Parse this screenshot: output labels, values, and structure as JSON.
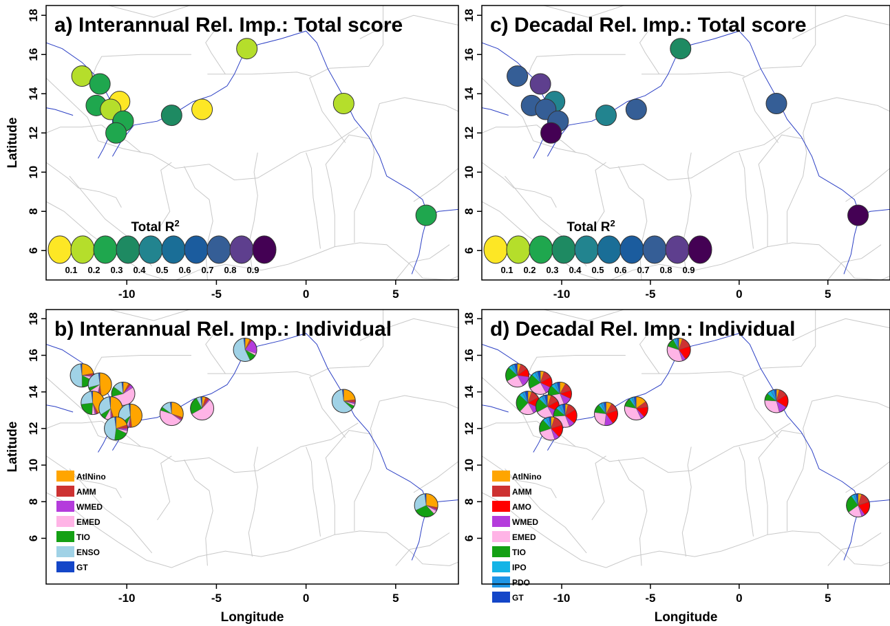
{
  "chart_data": [
    {
      "id": "a",
      "type": "scatter",
      "title": "a) Interannual Rel. Imp.: Total score",
      "xlabel": "",
      "ylabel": "Latitude",
      "xlim": [
        -14.5,
        8.5
      ],
      "ylim": [
        4.5,
        18.5
      ],
      "xticks": [
        "-10",
        "-5",
        "0",
        "5"
      ],
      "yticks": [
        "6",
        "8",
        "10",
        "12",
        "14",
        "16",
        "18"
      ],
      "legend_title": "Total R",
      "legend_sup": "2",
      "legend_values": [
        "0.1",
        "0.2",
        "0.3",
        "0.4",
        "0.5",
        "0.6",
        "0.7",
        "0.8",
        "0.9"
      ],
      "color_scale": [
        "#FDE725",
        "#B5DE2B",
        "#1FA74E",
        "#1E8A62",
        "#22848F",
        "#1A6E97",
        "#1B5C9E",
        "#355E96",
        "#5E3F8E",
        "#440154"
      ],
      "points": [
        {
          "lon": -12.5,
          "lat": 14.9,
          "r2": 0.15
        },
        {
          "lon": -11.5,
          "lat": 14.5,
          "r2": 0.25
        },
        {
          "lon": -10.4,
          "lat": 13.6,
          "r2": 0.05
        },
        {
          "lon": -11.7,
          "lat": 13.4,
          "r2": 0.25
        },
        {
          "lon": -10.9,
          "lat": 13.2,
          "r2": 0.15
        },
        {
          "lon": -10.2,
          "lat": 12.6,
          "r2": 0.25
        },
        {
          "lon": -10.6,
          "lat": 12.0,
          "r2": 0.25
        },
        {
          "lon": -7.5,
          "lat": 12.9,
          "r2": 0.35
        },
        {
          "lon": -5.8,
          "lat": 13.2,
          "r2": 0.05
        },
        {
          "lon": -3.3,
          "lat": 16.3,
          "r2": 0.15
        },
        {
          "lon": 2.1,
          "lat": 13.5,
          "r2": 0.15
        },
        {
          "lon": 6.7,
          "lat": 7.8,
          "r2": 0.25
        }
      ]
    },
    {
      "id": "c",
      "type": "scatter",
      "title": "c) Decadal Rel. Imp.: Total score",
      "xlabel": "",
      "ylabel": "",
      "xlim": [
        -14.5,
        8.5
      ],
      "ylim": [
        4.5,
        18.5
      ],
      "xticks": [
        "-10",
        "-5",
        "0",
        "5"
      ],
      "yticks": [
        "6",
        "8",
        "10",
        "12",
        "14",
        "16",
        "18"
      ],
      "legend_title": "Total R",
      "legend_sup": "2",
      "legend_values": [
        "0.1",
        "0.2",
        "0.3",
        "0.4",
        "0.5",
        "0.6",
        "0.7",
        "0.8",
        "0.9"
      ],
      "color_scale": [
        "#FDE725",
        "#B5DE2B",
        "#1FA74E",
        "#1E8A62",
        "#22848F",
        "#1A6E97",
        "#1B5C9E",
        "#355E96",
        "#5E3F8E",
        "#440154"
      ],
      "points": [
        {
          "lon": -12.5,
          "lat": 14.9,
          "r2": 0.75
        },
        {
          "lon": -11.2,
          "lat": 14.5,
          "r2": 0.85
        },
        {
          "lon": -10.4,
          "lat": 13.6,
          "r2": 0.45
        },
        {
          "lon": -11.7,
          "lat": 13.4,
          "r2": 0.75
        },
        {
          "lon": -10.9,
          "lat": 13.2,
          "r2": 0.75
        },
        {
          "lon": -10.2,
          "lat": 12.6,
          "r2": 0.75
        },
        {
          "lon": -10.6,
          "lat": 12.0,
          "r2": 0.95
        },
        {
          "lon": -7.5,
          "lat": 12.9,
          "r2": 0.45
        },
        {
          "lon": -5.8,
          "lat": 13.2,
          "r2": 0.75
        },
        {
          "lon": -3.3,
          "lat": 16.3,
          "r2": 0.35
        },
        {
          "lon": 2.1,
          "lat": 13.5,
          "r2": 0.75
        },
        {
          "lon": 6.7,
          "lat": 7.8,
          "r2": 0.95
        }
      ]
    },
    {
      "id": "b",
      "type": "pie",
      "title": "b) Interannual Rel. Imp.: Individual",
      "xlabel": "Longitude",
      "ylabel": "Latitude",
      "xlim": [
        -14.5,
        8.5
      ],
      "ylim": [
        3.5,
        18.5
      ],
      "xticks": [
        "-10",
        "-5",
        "0",
        "5"
      ],
      "yticks": [
        "6",
        "8",
        "10",
        "12",
        "14",
        "16",
        "18"
      ],
      "categories": [
        {
          "name": "AtlNino",
          "color": "#FFA500"
        },
        {
          "name": "AMM",
          "color": "#CD3232"
        },
        {
          "name": "WMED",
          "color": "#B43CDC"
        },
        {
          "name": "EMED",
          "color": "#FFB4E6"
        },
        {
          "name": "TIO",
          "color": "#14A014"
        },
        {
          "name": "ENSO",
          "color": "#A0D2E6"
        },
        {
          "name": "GT",
          "color": "#1446C8"
        }
      ],
      "points": [
        {
          "lon": -12.5,
          "lat": 14.9,
          "values": [
            0.22,
            0.03,
            0.02,
            0.05,
            0.18,
            0.48,
            0.02
          ]
        },
        {
          "lon": -11.5,
          "lat": 14.4,
          "values": [
            0.48,
            0.04,
            0.02,
            0.12,
            0.05,
            0.27,
            0.02
          ]
        },
        {
          "lon": -10.2,
          "lat": 13.9,
          "values": [
            0.08,
            0.03,
            0.05,
            0.55,
            0.14,
            0.13,
            0.02
          ]
        },
        {
          "lon": -11.9,
          "lat": 13.4,
          "values": [
            0.42,
            0.03,
            0.02,
            0.04,
            0.22,
            0.25,
            0.02
          ]
        },
        {
          "lon": -10.9,
          "lat": 13.1,
          "values": [
            0.45,
            0.03,
            0.02,
            0.08,
            0.08,
            0.32,
            0.02
          ]
        },
        {
          "lon": -9.8,
          "lat": 12.7,
          "values": [
            0.48,
            0.03,
            0.02,
            0.03,
            0.08,
            0.34,
            0.02
          ]
        },
        {
          "lon": -10.6,
          "lat": 12.0,
          "values": [
            0.2,
            0.05,
            0.03,
            0.04,
            0.2,
            0.46,
            0.02
          ]
        },
        {
          "lon": -7.5,
          "lat": 12.8,
          "values": [
            0.3,
            0.03,
            0.02,
            0.45,
            0.05,
            0.13,
            0.02
          ]
        },
        {
          "lon": -5.8,
          "lat": 13.1,
          "values": [
            0.05,
            0.05,
            0.02,
            0.55,
            0.25,
            0.06,
            0.02
          ]
        },
        {
          "lon": -3.4,
          "lat": 16.3,
          "values": [
            0.07,
            0.03,
            0.2,
            0.03,
            0.1,
            0.55,
            0.02
          ]
        },
        {
          "lon": 2.1,
          "lat": 13.5,
          "values": [
            0.23,
            0.04,
            0.02,
            0.03,
            0.05,
            0.61,
            0.02
          ]
        },
        {
          "lon": 6.7,
          "lat": 7.8,
          "values": [
            0.28,
            0.03,
            0.02,
            0.05,
            0.3,
            0.3,
            0.02
          ]
        }
      ]
    },
    {
      "id": "d",
      "type": "pie",
      "title": "d) Decadal Rel. Imp.: Individual",
      "xlabel": "Longitude",
      "ylabel": "",
      "xlim": [
        -14.5,
        8.5
      ],
      "ylim": [
        3.5,
        18.5
      ],
      "xticks": [
        "-10",
        "-5",
        "0",
        "5"
      ],
      "yticks": [
        "6",
        "8",
        "10",
        "12",
        "14",
        "16",
        "18"
      ],
      "categories": [
        {
          "name": "AtlNino",
          "color": "#FFA500"
        },
        {
          "name": "AMM",
          "color": "#CD3232"
        },
        {
          "name": "AMO",
          "color": "#FF0000"
        },
        {
          "name": "WMED",
          "color": "#B43CDC"
        },
        {
          "name": "EMED",
          "color": "#FFB4E6"
        },
        {
          "name": "TIO",
          "color": "#14A014"
        },
        {
          "name": "IPO",
          "color": "#14B4E6"
        },
        {
          "name": "PDO",
          "color": "#1E96E6"
        },
        {
          "name": "GT",
          "color": "#1446C8"
        }
      ],
      "points": [
        {
          "lon": -12.5,
          "lat": 14.9,
          "values": [
            0.05,
            0.1,
            0.12,
            0.15,
            0.25,
            0.2,
            0.05,
            0.04,
            0.04
          ]
        },
        {
          "lon": -11.2,
          "lat": 14.5,
          "values": [
            0.05,
            0.12,
            0.15,
            0.1,
            0.25,
            0.2,
            0.05,
            0.04,
            0.04
          ]
        },
        {
          "lon": -10.1,
          "lat": 13.9,
          "values": [
            0.08,
            0.12,
            0.12,
            0.12,
            0.28,
            0.15,
            0.05,
            0.04,
            0.04
          ]
        },
        {
          "lon": -11.9,
          "lat": 13.4,
          "values": [
            0.05,
            0.12,
            0.15,
            0.1,
            0.2,
            0.25,
            0.05,
            0.04,
            0.04
          ]
        },
        {
          "lon": -10.8,
          "lat": 13.2,
          "values": [
            0.05,
            0.12,
            0.15,
            0.1,
            0.25,
            0.2,
            0.05,
            0.04,
            0.04
          ]
        },
        {
          "lon": -9.8,
          "lat": 12.7,
          "values": [
            0.04,
            0.12,
            0.2,
            0.08,
            0.3,
            0.12,
            0.05,
            0.05,
            0.04
          ]
        },
        {
          "lon": -10.6,
          "lat": 12.0,
          "values": [
            0.05,
            0.15,
            0.18,
            0.07,
            0.25,
            0.18,
            0.05,
            0.04,
            0.03
          ]
        },
        {
          "lon": -7.5,
          "lat": 12.8,
          "values": [
            0.08,
            0.12,
            0.2,
            0.12,
            0.25,
            0.12,
            0.04,
            0.04,
            0.03
          ]
        },
        {
          "lon": -5.8,
          "lat": 13.1,
          "values": [
            0.15,
            0.08,
            0.15,
            0.05,
            0.35,
            0.12,
            0.04,
            0.03,
            0.03
          ]
        },
        {
          "lon": -3.4,
          "lat": 16.3,
          "values": [
            0.05,
            0.15,
            0.2,
            0.05,
            0.35,
            0.12,
            0.03,
            0.03,
            0.02
          ]
        },
        {
          "lon": 2.1,
          "lat": 13.5,
          "values": [
            0.04,
            0.12,
            0.18,
            0.12,
            0.3,
            0.1,
            0.06,
            0.05,
            0.03
          ]
        },
        {
          "lon": 6.7,
          "lat": 7.8,
          "values": [
            0.05,
            0.15,
            0.2,
            0.05,
            0.2,
            0.25,
            0.04,
            0.03,
            0.03
          ]
        }
      ]
    }
  ]
}
